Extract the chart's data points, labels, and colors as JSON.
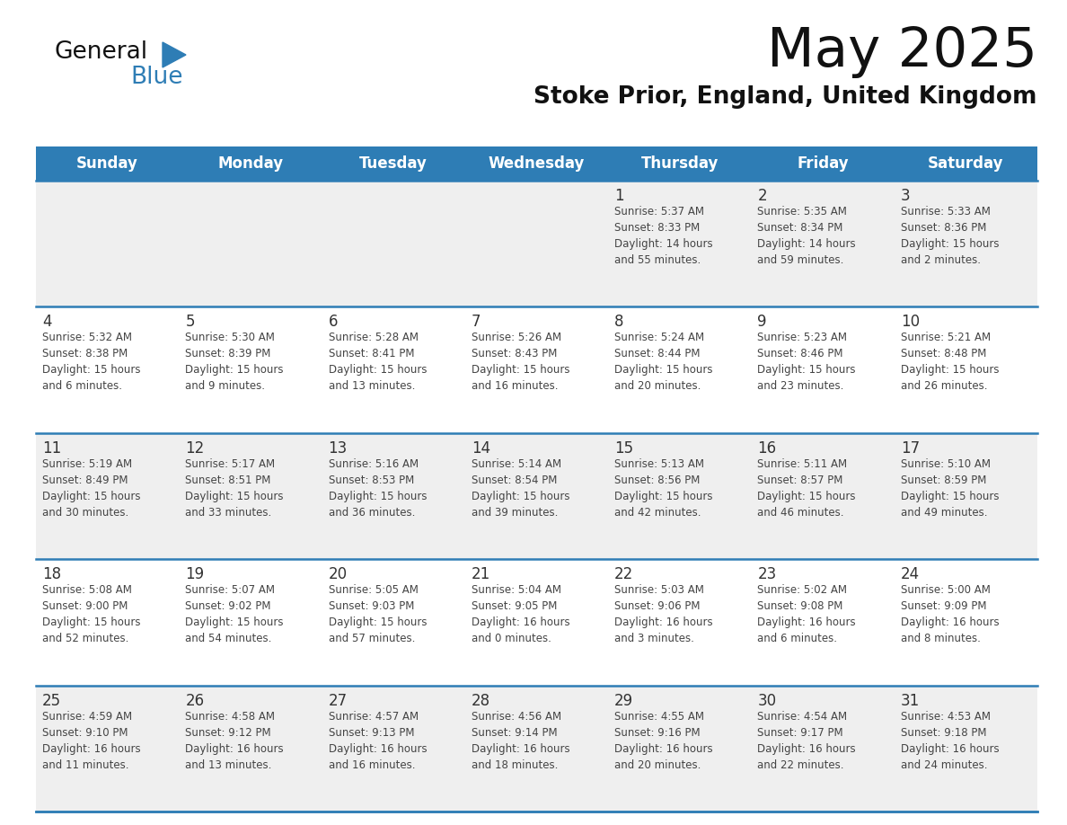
{
  "title": "May 2025",
  "subtitle": "Stoke Prior, England, United Kingdom",
  "days_of_week": [
    "Sunday",
    "Monday",
    "Tuesday",
    "Wednesday",
    "Thursday",
    "Friday",
    "Saturday"
  ],
  "header_bg": "#2E7DB5",
  "header_text": "#FFFFFF",
  "row_bg_odd": "#EFEFEF",
  "row_bg_even": "#FFFFFF",
  "separator_color": "#2E7DB5",
  "day_num_color": "#333333",
  "cell_text_color": "#444444",
  "logo_black": "#111111",
  "logo_blue": "#2E7DB5",
  "weeks": [
    {
      "days": [
        {
          "num": "",
          "info": ""
        },
        {
          "num": "",
          "info": ""
        },
        {
          "num": "",
          "info": ""
        },
        {
          "num": "",
          "info": ""
        },
        {
          "num": "1",
          "info": "Sunrise: 5:37 AM\nSunset: 8:33 PM\nDaylight: 14 hours\nand 55 minutes."
        },
        {
          "num": "2",
          "info": "Sunrise: 5:35 AM\nSunset: 8:34 PM\nDaylight: 14 hours\nand 59 minutes."
        },
        {
          "num": "3",
          "info": "Sunrise: 5:33 AM\nSunset: 8:36 PM\nDaylight: 15 hours\nand 2 minutes."
        }
      ]
    },
    {
      "days": [
        {
          "num": "4",
          "info": "Sunrise: 5:32 AM\nSunset: 8:38 PM\nDaylight: 15 hours\nand 6 minutes."
        },
        {
          "num": "5",
          "info": "Sunrise: 5:30 AM\nSunset: 8:39 PM\nDaylight: 15 hours\nand 9 minutes."
        },
        {
          "num": "6",
          "info": "Sunrise: 5:28 AM\nSunset: 8:41 PM\nDaylight: 15 hours\nand 13 minutes."
        },
        {
          "num": "7",
          "info": "Sunrise: 5:26 AM\nSunset: 8:43 PM\nDaylight: 15 hours\nand 16 minutes."
        },
        {
          "num": "8",
          "info": "Sunrise: 5:24 AM\nSunset: 8:44 PM\nDaylight: 15 hours\nand 20 minutes."
        },
        {
          "num": "9",
          "info": "Sunrise: 5:23 AM\nSunset: 8:46 PM\nDaylight: 15 hours\nand 23 minutes."
        },
        {
          "num": "10",
          "info": "Sunrise: 5:21 AM\nSunset: 8:48 PM\nDaylight: 15 hours\nand 26 minutes."
        }
      ]
    },
    {
      "days": [
        {
          "num": "11",
          "info": "Sunrise: 5:19 AM\nSunset: 8:49 PM\nDaylight: 15 hours\nand 30 minutes."
        },
        {
          "num": "12",
          "info": "Sunrise: 5:17 AM\nSunset: 8:51 PM\nDaylight: 15 hours\nand 33 minutes."
        },
        {
          "num": "13",
          "info": "Sunrise: 5:16 AM\nSunset: 8:53 PM\nDaylight: 15 hours\nand 36 minutes."
        },
        {
          "num": "14",
          "info": "Sunrise: 5:14 AM\nSunset: 8:54 PM\nDaylight: 15 hours\nand 39 minutes."
        },
        {
          "num": "15",
          "info": "Sunrise: 5:13 AM\nSunset: 8:56 PM\nDaylight: 15 hours\nand 42 minutes."
        },
        {
          "num": "16",
          "info": "Sunrise: 5:11 AM\nSunset: 8:57 PM\nDaylight: 15 hours\nand 46 minutes."
        },
        {
          "num": "17",
          "info": "Sunrise: 5:10 AM\nSunset: 8:59 PM\nDaylight: 15 hours\nand 49 minutes."
        }
      ]
    },
    {
      "days": [
        {
          "num": "18",
          "info": "Sunrise: 5:08 AM\nSunset: 9:00 PM\nDaylight: 15 hours\nand 52 minutes."
        },
        {
          "num": "19",
          "info": "Sunrise: 5:07 AM\nSunset: 9:02 PM\nDaylight: 15 hours\nand 54 minutes."
        },
        {
          "num": "20",
          "info": "Sunrise: 5:05 AM\nSunset: 9:03 PM\nDaylight: 15 hours\nand 57 minutes."
        },
        {
          "num": "21",
          "info": "Sunrise: 5:04 AM\nSunset: 9:05 PM\nDaylight: 16 hours\nand 0 minutes."
        },
        {
          "num": "22",
          "info": "Sunrise: 5:03 AM\nSunset: 9:06 PM\nDaylight: 16 hours\nand 3 minutes."
        },
        {
          "num": "23",
          "info": "Sunrise: 5:02 AM\nSunset: 9:08 PM\nDaylight: 16 hours\nand 6 minutes."
        },
        {
          "num": "24",
          "info": "Sunrise: 5:00 AM\nSunset: 9:09 PM\nDaylight: 16 hours\nand 8 minutes."
        }
      ]
    },
    {
      "days": [
        {
          "num": "25",
          "info": "Sunrise: 4:59 AM\nSunset: 9:10 PM\nDaylight: 16 hours\nand 11 minutes."
        },
        {
          "num": "26",
          "info": "Sunrise: 4:58 AM\nSunset: 9:12 PM\nDaylight: 16 hours\nand 13 minutes."
        },
        {
          "num": "27",
          "info": "Sunrise: 4:57 AM\nSunset: 9:13 PM\nDaylight: 16 hours\nand 16 minutes."
        },
        {
          "num": "28",
          "info": "Sunrise: 4:56 AM\nSunset: 9:14 PM\nDaylight: 16 hours\nand 18 minutes."
        },
        {
          "num": "29",
          "info": "Sunrise: 4:55 AM\nSunset: 9:16 PM\nDaylight: 16 hours\nand 20 minutes."
        },
        {
          "num": "30",
          "info": "Sunrise: 4:54 AM\nSunset: 9:17 PM\nDaylight: 16 hours\nand 22 minutes."
        },
        {
          "num": "31",
          "info": "Sunrise: 4:53 AM\nSunset: 9:18 PM\nDaylight: 16 hours\nand 24 minutes."
        }
      ]
    }
  ]
}
